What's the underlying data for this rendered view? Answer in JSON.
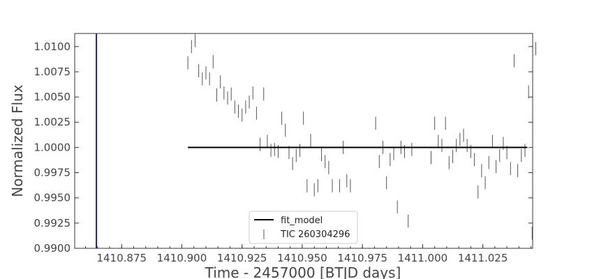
{
  "chart_data": {
    "type": "scatter",
    "xlabel": "Time - 2457000 [BTJD days]",
    "ylabel": "Normalized Flux",
    "xlim": [
      1410.8555,
      1411.0457
    ],
    "ylim": [
      0.99,
      1.0113
    ],
    "xticks": [
      {
        "value": 1410.875,
        "label": "1410.875"
      },
      {
        "value": 1410.9,
        "label": "1410.900"
      },
      {
        "value": 1410.925,
        "label": "1410.925"
      },
      {
        "value": 1410.95,
        "label": "1410.950"
      },
      {
        "value": 1410.975,
        "label": "1410.975"
      },
      {
        "value": 1411.0,
        "label": "1411.000"
      },
      {
        "value": 1411.025,
        "label": "1411.025"
      }
    ],
    "yticks": [
      {
        "value": 0.99,
        "label": "0.9900"
      },
      {
        "value": 0.9925,
        "label": "0.9925"
      },
      {
        "value": 0.995,
        "label": "0.9950"
      },
      {
        "value": 0.9975,
        "label": "0.9975"
      },
      {
        "value": 1.0,
        "label": "1.0000"
      },
      {
        "value": 1.0025,
        "label": "1.0025"
      },
      {
        "value": 1.005,
        "label": "1.0050"
      },
      {
        "value": 1.0075,
        "label": "1.0075"
      },
      {
        "value": 1.01,
        "label": "1.0100"
      }
    ],
    "minor_x_step": 0.005,
    "grid": false,
    "legend_position": "bottom-center",
    "vline": {
      "x": 1410.8645,
      "color": "#1f1fb4"
    },
    "series": [
      {
        "name": "fit_model",
        "kind": "line",
        "color": "#000000",
        "x": [
          1410.9025,
          1411.0435
        ],
        "y": [
          1.0,
          1.0
        ]
      },
      {
        "name": "TIC 260304296",
        "kind": "errorbar",
        "color": "#555555",
        "err": 0.00065,
        "points": [
          [
            1410.9025,
            1.0084
          ],
          [
            1410.904,
            1.01
          ],
          [
            1410.9055,
            1.0106
          ],
          [
            1410.907,
            1.0076
          ],
          [
            1410.9085,
            1.0068
          ],
          [
            1410.91,
            1.0074
          ],
          [
            1410.9115,
            1.0068
          ],
          [
            1410.913,
            1.0085
          ],
          [
            1410.9145,
            1.0052
          ],
          [
            1410.916,
            1.0065
          ],
          [
            1410.9175,
            1.0054
          ],
          [
            1410.919,
            1.0049
          ],
          [
            1410.9205,
            1.0053
          ],
          [
            1410.922,
            1.004
          ],
          [
            1410.9235,
            1.0036
          ],
          [
            1410.925,
            1.0032
          ],
          [
            1410.9265,
            1.004
          ],
          [
            1410.928,
            1.0045
          ],
          [
            1410.9295,
            1.0054
          ],
          [
            1410.931,
            1.0034
          ],
          [
            1410.9325,
            1.0003
          ],
          [
            1410.934,
            1.0053
          ],
          [
            1410.9355,
            1.0006
          ],
          [
            1410.937,
            0.9997
          ],
          [
            1410.9385,
            0.9998
          ],
          [
            1410.94,
            0.9996
          ],
          [
            1410.9415,
            1.0029
          ],
          [
            1410.943,
            1.0017
          ],
          [
            1410.9445,
            0.9995
          ],
          [
            1410.946,
            0.9984
          ],
          [
            1410.9475,
            0.9992
          ],
          [
            1410.949,
            0.9997
          ],
          [
            1410.9505,
            1.0029
          ],
          [
            1410.952,
            0.9962
          ],
          [
            1410.9535,
            1.0007
          ],
          [
            1410.955,
            0.9958
          ],
          [
            1410.9565,
            0.9962
          ],
          [
            1410.958,
            0.9993
          ],
          [
            1410.9595,
            0.9986
          ],
          [
            1410.961,
            0.998
          ],
          [
            1410.9625,
            0.9962
          ],
          [
            1410.9655,
            0.9962
          ],
          [
            1410.967,
            1.0
          ],
          [
            1410.9685,
            0.9967
          ],
          [
            1410.97,
            0.9962
          ],
          [
            1410.9805,
            1.0024
          ],
          [
            1410.982,
            0.9986
          ],
          [
            1410.9835,
            1.0
          ],
          [
            1410.985,
            0.9965
          ],
          [
            1410.9865,
            0.9988
          ],
          [
            1410.988,
            0.9994
          ],
          [
            1410.9895,
            0.9941
          ],
          [
            1410.991,
            1.0
          ],
          [
            1410.9925,
            0.9996
          ],
          [
            1410.994,
            0.9927
          ],
          [
            1410.9955,
            0.9998
          ],
          [
            1411.0035,
            0.999
          ],
          [
            1411.005,
            1.0024
          ],
          [
            1411.0065,
            1.0006
          ],
          [
            1411.008,
            1.0002
          ],
          [
            1411.0095,
            1.0024
          ],
          [
            1411.011,
            0.9985
          ],
          [
            1411.0125,
            0.9991
          ],
          [
            1411.014,
            1.0002
          ],
          [
            1411.0155,
            1.0008
          ],
          [
            1411.017,
            1.0012
          ],
          [
            1411.0185,
            1.0002
          ],
          [
            1411.02,
            0.9996
          ],
          [
            1411.0215,
            0.9988
          ],
          [
            1411.023,
            0.9956
          ],
          [
            1411.0245,
            0.9977
          ],
          [
            1411.026,
            0.9965
          ],
          [
            1411.0275,
            0.9985
          ],
          [
            1411.029,
            1.0006
          ],
          [
            1411.0305,
            0.9981
          ],
          [
            1411.032,
            0.9992
          ],
          [
            1411.0335,
            1.0004
          ],
          [
            1411.035,
            0.9995
          ],
          [
            1411.0365,
            0.9979
          ],
          [
            1411.038,
            1.0086
          ],
          [
            1411.0395,
            0.9977
          ],
          [
            1411.041,
            0.9992
          ],
          [
            1411.0425,
            0.9997
          ],
          [
            1411.044,
            1.0055
          ],
          [
            1411.0455,
            0.9915
          ],
          [
            1411.047,
            1.0098
          ]
        ]
      }
    ]
  }
}
